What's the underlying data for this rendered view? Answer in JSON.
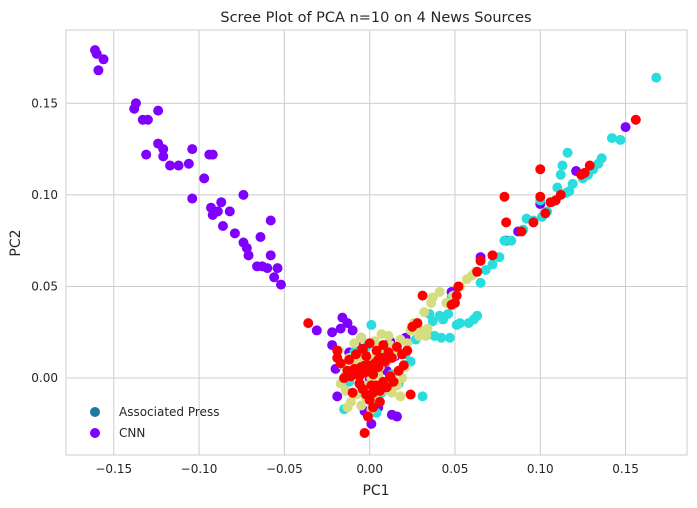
{
  "chart_data": {
    "type": "scatter",
    "title": "Scree Plot of PCA n=10 on 4 News Sources",
    "xlabel": "PC1",
    "ylabel": "PC2",
    "xlim": [
      -0.178,
      0.186
    ],
    "ylim": [
      -0.042,
      0.19
    ],
    "xticks": [
      -0.15,
      -0.1,
      -0.05,
      0.0,
      0.05,
      0.1,
      0.15
    ],
    "xtick_labels": [
      "−0.15",
      "−0.10",
      "−0.05",
      "0.00",
      "0.05",
      "0.10",
      "0.15"
    ],
    "yticks": [
      0.0,
      0.05,
      0.1,
      0.15
    ],
    "ytick_labels": [
      "0.00",
      "0.05",
      "0.10",
      "0.15"
    ],
    "grid": true,
    "legend_position": "lower-left",
    "colors": {
      "background": "#ffffff",
      "grid": "#cccccc",
      "ap_legend_marker": "#1f77a4"
    },
    "legend": [
      "Associated Press",
      "CNN"
    ],
    "series": [
      {
        "name": "CNN",
        "color": "#8000ff",
        "points": [
          [
            -0.161,
            0.179
          ],
          [
            -0.16,
            0.177
          ],
          [
            -0.159,
            0.168
          ],
          [
            -0.156,
            0.174
          ],
          [
            -0.138,
            0.147
          ],
          [
            -0.137,
            0.15
          ],
          [
            -0.133,
            0.141
          ],
          [
            -0.13,
            0.141
          ],
          [
            -0.131,
            0.122
          ],
          [
            -0.124,
            0.146
          ],
          [
            -0.124,
            0.128
          ],
          [
            -0.121,
            0.125
          ],
          [
            -0.121,
            0.121
          ],
          [
            -0.117,
            0.116
          ],
          [
            -0.112,
            0.116
          ],
          [
            -0.104,
            0.098
          ],
          [
            -0.106,
            0.117
          ],
          [
            -0.104,
            0.125
          ],
          [
            -0.097,
            0.109
          ],
          [
            -0.094,
            0.122
          ],
          [
            -0.092,
            0.122
          ],
          [
            -0.092,
            0.089
          ],
          [
            -0.093,
            0.093
          ],
          [
            -0.089,
            0.091
          ],
          [
            -0.087,
            0.096
          ],
          [
            -0.086,
            0.083
          ],
          [
            -0.082,
            0.091
          ],
          [
            -0.079,
            0.079
          ],
          [
            -0.074,
            0.1
          ],
          [
            -0.074,
            0.074
          ],
          [
            -0.072,
            0.071
          ],
          [
            -0.071,
            0.067
          ],
          [
            -0.064,
            0.077
          ],
          [
            -0.066,
            0.061
          ],
          [
            -0.063,
            0.061
          ],
          [
            -0.06,
            0.06
          ],
          [
            -0.058,
            0.086
          ],
          [
            -0.058,
            0.067
          ],
          [
            -0.056,
            0.055
          ],
          [
            -0.054,
            0.06
          ],
          [
            -0.052,
            0.051
          ],
          [
            -0.031,
            0.026
          ],
          [
            -0.022,
            0.025
          ],
          [
            -0.017,
            0.027
          ],
          [
            -0.016,
            0.033
          ],
          [
            -0.013,
            0.03
          ],
          [
            -0.01,
            0.026
          ],
          [
            -0.008,
            0.018
          ],
          [
            -0.005,
            0.022
          ],
          [
            -0.003,
            0.01
          ],
          [
            -0.008,
            0.005
          ],
          [
            -0.005,
            -0.004
          ],
          [
            -0.003,
            -0.018
          ],
          [
            0.001,
            -0.025
          ],
          [
            0.005,
            -0.016
          ],
          [
            0.01,
            0.004
          ],
          [
            0.011,
            0.012
          ],
          [
            0.012,
            0.02
          ],
          [
            0.013,
            -0.02
          ],
          [
            0.016,
            -0.021
          ],
          [
            0.015,
            0.012
          ],
          [
            0.021,
            0.022
          ],
          [
            0.048,
            0.047
          ],
          [
            0.065,
            0.066
          ],
          [
            0.08,
            0.075
          ],
          [
            0.087,
            0.08
          ],
          [
            0.1,
            0.095
          ],
          [
            0.121,
            0.113
          ],
          [
            0.15,
            0.137
          ],
          [
            -0.02,
            0.005
          ],
          [
            -0.019,
            -0.01
          ],
          [
            -0.014,
            0.0
          ],
          [
            -0.022,
            0.018
          ],
          [
            -0.012,
            0.014
          ],
          [
            0.0,
            -0.001
          ]
        ]
      },
      {
        "name": "",
        "color": "#2adddd",
        "points": [
          [
            0.168,
            0.164
          ],
          [
            0.147,
            0.13
          ],
          [
            0.136,
            0.12
          ],
          [
            0.134,
            0.117
          ],
          [
            0.131,
            0.114
          ],
          [
            0.128,
            0.111
          ],
          [
            0.125,
            0.109
          ],
          [
            0.119,
            0.106
          ],
          [
            0.117,
            0.102
          ],
          [
            0.115,
            0.101
          ],
          [
            0.113,
            0.116
          ],
          [
            0.112,
            0.111
          ],
          [
            0.116,
            0.123
          ],
          [
            0.107,
            0.096
          ],
          [
            0.104,
            0.091
          ],
          [
            0.101,
            0.088
          ],
          [
            0.1,
            0.097
          ],
          [
            0.096,
            0.086
          ],
          [
            0.09,
            0.081
          ],
          [
            0.083,
            0.075
          ],
          [
            0.079,
            0.075
          ],
          [
            0.076,
            0.066
          ],
          [
            0.072,
            0.062
          ],
          [
            0.065,
            0.052
          ],
          [
            0.063,
            0.034
          ],
          [
            0.058,
            0.03
          ],
          [
            0.053,
            0.03
          ],
          [
            0.051,
            0.029
          ],
          [
            0.048,
            0.044
          ],
          [
            0.043,
            0.032
          ],
          [
            0.046,
            0.035
          ],
          [
            0.041,
            0.034
          ],
          [
            0.037,
            0.031
          ],
          [
            0.035,
            0.035
          ],
          [
            0.038,
            0.023
          ],
          [
            0.042,
            0.022
          ],
          [
            0.047,
            0.022
          ],
          [
            0.031,
            -0.01
          ],
          [
            0.021,
            0.013
          ],
          [
            0.013,
            0.002
          ],
          [
            -0.009,
            0.014
          ],
          [
            -0.012,
            -0.002
          ],
          [
            -0.015,
            -0.017
          ],
          [
            0.004,
            -0.019
          ],
          [
            0.001,
            0.029
          ],
          [
            -0.007,
            0.01
          ],
          [
            -0.004,
            -0.008
          ],
          [
            0.006,
            0.008
          ],
          [
            0.007,
            -0.008
          ],
          [
            0.012,
            -0.006
          ],
          [
            -0.002,
            0.017
          ],
          [
            0.017,
            -0.003
          ],
          [
            0.024,
            0.009
          ],
          [
            0.027,
            0.021
          ],
          [
            0.032,
            0.025
          ],
          [
            0.061,
            0.032
          ],
          [
            0.068,
            0.059
          ],
          [
            0.092,
            0.087
          ],
          [
            0.11,
            0.104
          ],
          [
            0.142,
            0.131
          ]
        ]
      },
      {
        "name": "",
        "color": "#d4dd80",
        "points": [
          [
            0.062,
            0.058
          ],
          [
            0.06,
            0.056
          ],
          [
            0.057,
            0.054
          ],
          [
            0.053,
            0.05
          ],
          [
            0.049,
            0.045
          ],
          [
            0.045,
            0.041
          ],
          [
            0.037,
            0.044
          ],
          [
            0.036,
            0.041
          ],
          [
            0.032,
            0.036
          ],
          [
            0.03,
            0.026
          ],
          [
            0.033,
            0.023
          ],
          [
            0.026,
            0.03
          ],
          [
            0.024,
            0.026
          ],
          [
            0.022,
            0.019
          ],
          [
            0.018,
            0.021
          ],
          [
            0.016,
            0.015
          ],
          [
            0.014,
            0.012
          ],
          [
            0.012,
            0.018
          ],
          [
            0.01,
            0.009
          ],
          [
            0.008,
            0.015
          ],
          [
            0.006,
            0.006
          ],
          [
            0.004,
            0.012
          ],
          [
            0.002,
            0.004
          ],
          [
            0.0,
            0.009
          ],
          [
            -0.002,
            0.006
          ],
          [
            -0.004,
            0.012
          ],
          [
            -0.006,
            0.003
          ],
          [
            -0.008,
            0.009
          ],
          [
            -0.01,
            0.004
          ],
          [
            -0.012,
            0.011
          ],
          [
            -0.014,
            0.002
          ],
          [
            -0.016,
            0.007
          ],
          [
            -0.017,
            -0.003
          ],
          [
            -0.014,
            -0.007
          ],
          [
            -0.011,
            -0.013
          ],
          [
            -0.008,
            -0.009
          ],
          [
            -0.005,
            -0.015
          ],
          [
            -0.002,
            -0.011
          ],
          [
            0.001,
            -0.017
          ],
          [
            0.004,
            -0.012
          ],
          [
            0.007,
            -0.007
          ],
          [
            0.01,
            -0.003
          ],
          [
            0.013,
            -0.008
          ],
          [
            0.016,
            -0.004
          ],
          [
            0.019,
            0.0
          ],
          [
            0.021,
            0.006
          ],
          [
            -0.009,
            0.019
          ],
          [
            -0.005,
            0.022
          ],
          [
            0.003,
            0.02
          ],
          [
            0.007,
            0.024
          ],
          [
            0.011,
            0.023
          ],
          [
            0.041,
            0.047
          ],
          [
            0.029,
            0.023
          ],
          [
            0.034,
            0.027
          ],
          [
            -0.018,
            0.015
          ],
          [
            -0.013,
            -0.016
          ],
          [
            0.018,
            -0.01
          ],
          [
            0.001,
            0.0
          ],
          [
            -0.003,
            -0.004
          ],
          [
            0.005,
            0.002
          ]
        ]
      },
      {
        "name": "",
        "color": "#ff0000",
        "points": [
          [
            0.156,
            0.141
          ],
          [
            0.129,
            0.116
          ],
          [
            0.126,
            0.112
          ],
          [
            0.124,
            0.111
          ],
          [
            0.112,
            0.1
          ],
          [
            0.109,
            0.097
          ],
          [
            0.106,
            0.096
          ],
          [
            0.103,
            0.09
          ],
          [
            0.1,
            0.114
          ],
          [
            0.1,
            0.099
          ],
          [
            0.096,
            0.085
          ],
          [
            0.089,
            0.08
          ],
          [
            0.079,
            0.099
          ],
          [
            0.072,
            0.067
          ],
          [
            0.065,
            0.064
          ],
          [
            0.063,
            0.058
          ],
          [
            0.052,
            0.05
          ],
          [
            0.051,
            0.045
          ],
          [
            0.05,
            0.041
          ],
          [
            0.048,
            0.04
          ],
          [
            0.031,
            0.045
          ],
          [
            0.028,
            0.03
          ],
          [
            0.025,
            0.028
          ],
          [
            0.022,
            0.015
          ],
          [
            0.019,
            0.013
          ],
          [
            0.016,
            0.017
          ],
          [
            0.013,
            0.011
          ],
          [
            0.011,
            0.014
          ],
          [
            0.009,
            0.009
          ],
          [
            0.007,
            0.011
          ],
          [
            0.005,
            0.006
          ],
          [
            0.003,
            0.008
          ],
          [
            0.001,
            0.004
          ],
          [
            -0.001,
            0.007
          ],
          [
            -0.003,
            0.003
          ],
          [
            -0.005,
            0.006
          ],
          [
            -0.007,
            0.002
          ],
          [
            -0.009,
            0.005
          ],
          [
            -0.011,
            0.001
          ],
          [
            -0.013,
            0.004
          ],
          [
            -0.015,
            0.0
          ],
          [
            -0.006,
            -0.003
          ],
          [
            -0.004,
            -0.006
          ],
          [
            -0.002,
            -0.009
          ],
          [
            0.0,
            -0.012
          ],
          [
            0.002,
            -0.008
          ],
          [
            0.004,
            -0.004
          ],
          [
            0.006,
            -0.007
          ],
          [
            0.008,
            -0.002
          ],
          [
            0.01,
            -0.005
          ],
          [
            0.012,
            0.001
          ],
          [
            0.014,
            -0.002
          ],
          [
            0.017,
            0.004
          ],
          [
            0.02,
            0.007
          ],
          [
            -0.008,
            0.013
          ],
          [
            -0.004,
            0.016
          ],
          [
            0.0,
            0.019
          ],
          [
            0.004,
            0.015
          ],
          [
            0.008,
            0.018
          ],
          [
            -0.012,
            0.01
          ],
          [
            -0.017,
            0.008
          ],
          [
            -0.019,
            0.011
          ],
          [
            -0.003,
            -0.03
          ],
          [
            -0.001,
            -0.021
          ],
          [
            0.002,
            -0.016
          ],
          [
            0.006,
            -0.013
          ],
          [
            0.024,
            -0.009
          ],
          [
            -0.01,
            -0.008
          ],
          [
            -0.006,
            0.001
          ],
          [
            0.002,
            0.002
          ],
          [
            0.005,
            0.01
          ],
          [
            -0.002,
            0.012
          ],
          [
            0.001,
            -0.004
          ],
          [
            -0.036,
            0.03
          ],
          [
            -0.019,
            0.015
          ],
          [
            0.08,
            0.085
          ]
        ]
      }
    ]
  }
}
